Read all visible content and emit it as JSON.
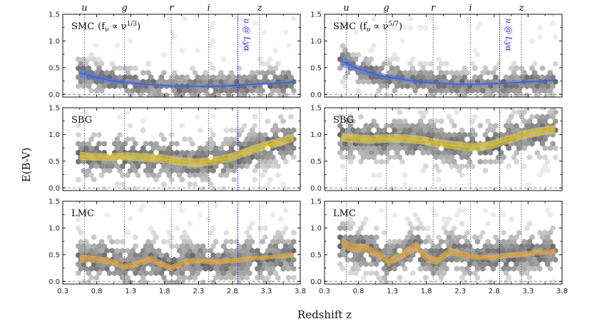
{
  "chart_data": {
    "type": "line",
    "xlabel": "Redshift z",
    "ylabel": "E(B-V)",
    "xlim": [
      0.3,
      3.8
    ],
    "ylim": [
      -0.05,
      1.5
    ],
    "xticks": [
      "0.3",
      "0.8",
      "1.3",
      "1.8",
      "2.3",
      "2.8",
      "3.3",
      "3.8"
    ],
    "yticks": [
      "0.0",
      "0.5",
      "1.0",
      "1.5"
    ],
    "bands": [
      {
        "name": "u",
        "z": 0.62
      },
      {
        "name": "g",
        "z": 1.21
      },
      {
        "name": "r",
        "z": 1.9
      },
      {
        "name": "i",
        "z": 2.45
      },
      {
        "name": "z",
        "z": 3.2
      }
    ],
    "lya_line": {
      "label": "u @ Lyα",
      "z": 2.88
    },
    "panels": [
      {
        "column": 0,
        "row": 0,
        "label": "SMC",
        "label_formula": "(fν ∝ ν1/3)",
        "label_formula_main": "(f",
        "label_formula_sub": "ν",
        "label_formula_mid": " ∝ ν",
        "label_formula_sup": "1/3",
        "label_formula_end": ")",
        "color": "#3a5fcd",
        "fill": "#5a7ae0",
        "x": [
          0.55,
          0.75,
          1.0,
          1.25,
          1.5,
          1.75,
          2.0,
          2.25,
          2.5,
          2.75,
          3.0,
          3.25,
          3.5,
          3.7
        ],
        "y": [
          0.4,
          0.33,
          0.26,
          0.22,
          0.19,
          0.17,
          0.15,
          0.15,
          0.15,
          0.16,
          0.18,
          0.2,
          0.21,
          0.23
        ],
        "err": [
          0.1,
          0.07,
          0.05,
          0.04,
          0.03,
          0.03,
          0.03,
          0.03,
          0.03,
          0.03,
          0.03,
          0.03,
          0.03,
          0.03
        ]
      },
      {
        "column": 1,
        "row": 0,
        "label": "SMC",
        "label_formula": "(fν ∝ ν5/7)",
        "label_formula_main": "(f",
        "label_formula_sub": "ν",
        "label_formula_mid": " ∝ ν",
        "label_formula_sup": "5/7",
        "label_formula_end": ")",
        "color": "#3a5fcd",
        "fill": "#5a7ae0",
        "x": [
          0.55,
          0.75,
          1.0,
          1.25,
          1.5,
          1.75,
          2.0,
          2.25,
          2.5,
          2.75,
          3.0,
          3.25,
          3.5,
          3.7
        ],
        "y": [
          0.63,
          0.5,
          0.39,
          0.32,
          0.27,
          0.23,
          0.21,
          0.19,
          0.19,
          0.2,
          0.21,
          0.23,
          0.25,
          0.27
        ],
        "err": [
          0.12,
          0.08,
          0.06,
          0.05,
          0.04,
          0.03,
          0.03,
          0.03,
          0.03,
          0.03,
          0.03,
          0.03,
          0.03,
          0.03
        ]
      },
      {
        "column": 0,
        "row": 1,
        "label": "SBG",
        "color": "#e6c200",
        "fill": "#f4dd4a",
        "x": [
          0.55,
          0.75,
          1.0,
          1.25,
          1.5,
          1.75,
          2.0,
          2.25,
          2.5,
          2.75,
          3.0,
          3.25,
          3.5,
          3.7
        ],
        "y": [
          0.6,
          0.58,
          0.58,
          0.59,
          0.57,
          0.55,
          0.5,
          0.47,
          0.5,
          0.56,
          0.67,
          0.78,
          0.86,
          0.95
        ],
        "err": [
          0.08,
          0.07,
          0.07,
          0.08,
          0.08,
          0.08,
          0.08,
          0.08,
          0.08,
          0.08,
          0.08,
          0.08,
          0.08,
          0.08
        ]
      },
      {
        "column": 1,
        "row": 1,
        "label": "SBG",
        "color": "#e6c200",
        "fill": "#f4dd4a",
        "x": [
          0.55,
          0.75,
          1.0,
          1.25,
          1.5,
          1.75,
          2.0,
          2.25,
          2.5,
          2.75,
          3.0,
          3.25,
          3.5,
          3.7
        ],
        "y": [
          0.95,
          0.92,
          0.91,
          0.93,
          0.92,
          0.89,
          0.83,
          0.79,
          0.76,
          0.8,
          0.9,
          1.0,
          1.06,
          1.1
        ],
        "err": [
          0.08,
          0.08,
          0.08,
          0.08,
          0.08,
          0.08,
          0.08,
          0.08,
          0.08,
          0.08,
          0.08,
          0.08,
          0.08,
          0.08
        ]
      },
      {
        "column": 0,
        "row": 2,
        "label": "LMC",
        "color": "#e8a020",
        "fill": "#f2b850",
        "x": [
          0.55,
          0.8,
          1.0,
          1.2,
          1.4,
          1.6,
          1.8,
          1.9,
          2.1,
          2.3,
          2.5,
          2.7,
          2.9,
          3.1,
          3.3,
          3.5,
          3.7
        ],
        "y": [
          0.43,
          0.41,
          0.38,
          0.27,
          0.33,
          0.42,
          0.3,
          0.25,
          0.36,
          0.39,
          0.36,
          0.38,
          0.4,
          0.43,
          0.45,
          0.47,
          0.49
        ],
        "err": [
          0.08,
          0.06,
          0.06,
          0.05,
          0.06,
          0.06,
          0.06,
          0.06,
          0.06,
          0.05,
          0.05,
          0.05,
          0.05,
          0.04,
          0.04,
          0.04,
          0.04
        ]
      },
      {
        "column": 1,
        "row": 2,
        "label": "LMC",
        "color": "#e8a020",
        "fill": "#f2b850",
        "x": [
          0.55,
          0.7,
          0.9,
          1.1,
          1.25,
          1.45,
          1.65,
          1.8,
          1.95,
          2.15,
          2.35,
          2.55,
          2.75,
          2.95,
          3.15,
          3.35,
          3.55,
          3.7
        ],
        "y": [
          0.73,
          0.62,
          0.62,
          0.5,
          0.36,
          0.5,
          0.66,
          0.44,
          0.38,
          0.56,
          0.49,
          0.46,
          0.44,
          0.48,
          0.5,
          0.53,
          0.55,
          0.56
        ],
        "err": [
          0.1,
          0.08,
          0.08,
          0.07,
          0.07,
          0.08,
          0.09,
          0.08,
          0.07,
          0.07,
          0.06,
          0.05,
          0.05,
          0.05,
          0.05,
          0.05,
          0.05,
          0.05
        ]
      }
    ]
  }
}
